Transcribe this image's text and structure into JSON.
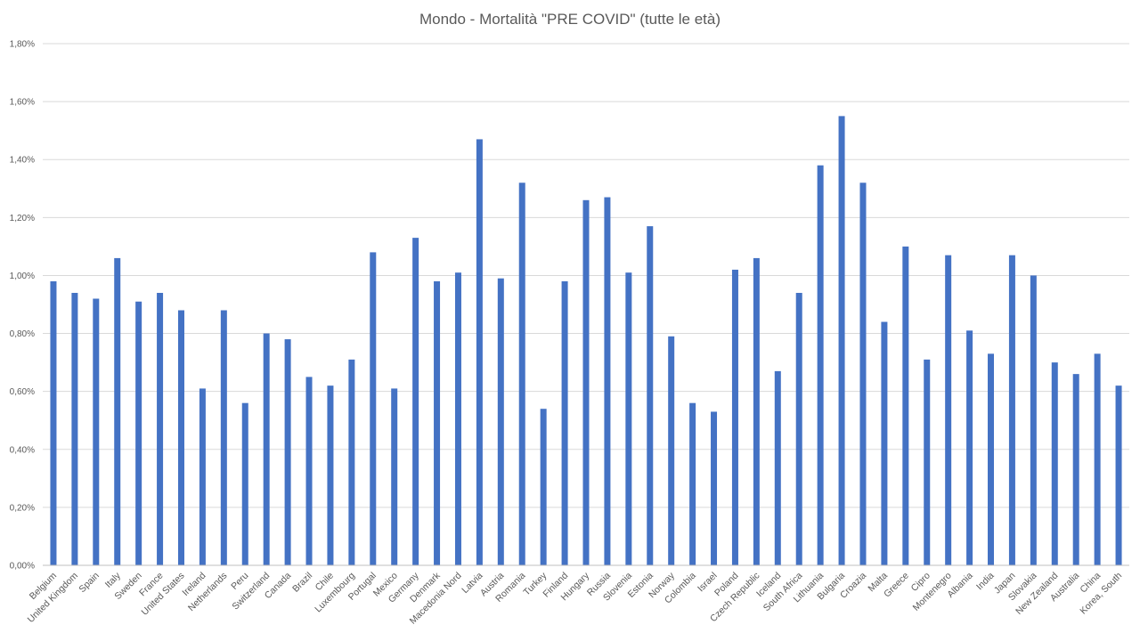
{
  "chart_data": {
    "type": "bar",
    "title": "Mondo - Mortalità \"PRE COVID\" (tutte le età)",
    "xlabel": "",
    "ylabel": "",
    "ylim": [
      0,
      1.8
    ],
    "ytick_values": [
      0,
      0.2,
      0.4,
      0.6,
      0.8,
      1.0,
      1.2,
      1.4,
      1.6,
      1.8
    ],
    "ytick_labels": [
      "0,00%",
      "0,20%",
      "0,40%",
      "0,60%",
      "0,80%",
      "1,00%",
      "1,20%",
      "1,40%",
      "1,60%",
      "1,80%"
    ],
    "grid": true,
    "bar_color": "#4472c4",
    "categories": [
      "Belgium",
      "United Kingdom",
      "Spain",
      "Italy",
      "Sweden",
      "France",
      "United States",
      "Ireland",
      "Netherlands",
      "Peru",
      "Switzerland",
      "Canada",
      "Brazil",
      "Chile",
      "Luxembourg",
      "Portugal",
      "Mexico",
      "Germany",
      "Denmark",
      "Macedonia Nord",
      "Latvia",
      "Austria",
      "Romania",
      "Turkey",
      "Finland",
      "Hungary",
      "Russia",
      "Slovenia",
      "Estonia",
      "Norway",
      "Colombia",
      "Israel",
      "Poland",
      "Czech Republic",
      "Iceland",
      "South Africa",
      "Lithuania",
      "Bulgaria",
      "Croazia",
      "Malta",
      "Greece",
      "Cipro",
      "Montenegro",
      "Albania",
      "India",
      "Japan",
      "Slovakia",
      "New Zealand",
      "Australia",
      "China",
      "Korea, South"
    ],
    "values": [
      0.98,
      0.94,
      0.92,
      1.06,
      0.91,
      0.94,
      0.88,
      0.61,
      0.88,
      0.56,
      0.8,
      0.78,
      0.65,
      0.62,
      0.71,
      1.08,
      0.61,
      1.13,
      0.98,
      1.01,
      1.47,
      0.99,
      1.32,
      0.54,
      0.98,
      1.26,
      1.27,
      1.01,
      1.17,
      0.79,
      0.56,
      0.53,
      1.02,
      1.06,
      0.67,
      0.94,
      1.38,
      1.55,
      1.32,
      0.84,
      1.1,
      0.71,
      1.07,
      0.81,
      0.73,
      1.07,
      1.0,
      0.7,
      0.66,
      0.73,
      0.62
    ]
  }
}
